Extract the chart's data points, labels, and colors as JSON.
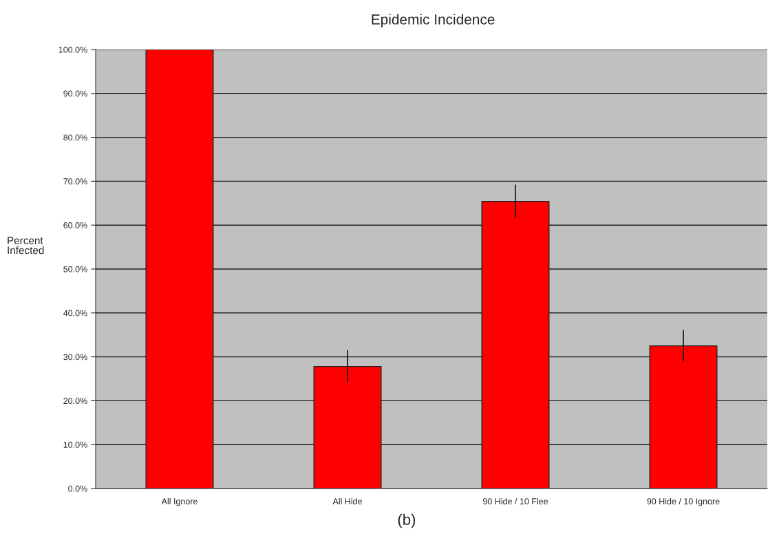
{
  "chart_data": {
    "type": "bar",
    "title": "Epidemic Incidence",
    "ylabel": "Percent\nInfected",
    "categories": [
      "All Ignore",
      "All Hide",
      "90 Hide / 10 Flee",
      "90 Hide / 10 Ignore"
    ],
    "values": [
      100.0,
      27.8,
      65.4,
      32.5
    ],
    "errors": [
      null,
      3.7,
      3.8,
      3.6
    ],
    "color": "#ff0000",
    "ylim": [
      0,
      100
    ],
    "yticks": [
      {
        "value": 0,
        "label": "0.0%"
      },
      {
        "value": 10,
        "label": "10.0%"
      },
      {
        "value": 20,
        "label": "20.0%"
      },
      {
        "value": 30,
        "label": "30.0%"
      },
      {
        "value": 40,
        "label": "40.0%"
      },
      {
        "value": 50,
        "label": "50.0%"
      },
      {
        "value": 60,
        "label": "60.0%"
      },
      {
        "value": 70,
        "label": "70.0%"
      },
      {
        "value": 80,
        "label": "80.0%"
      },
      {
        "value": 90,
        "label": "90.0%"
      },
      {
        "value": 100,
        "label": "100.0%"
      }
    ],
    "grid": "y",
    "annotations": [
      "(b)"
    ]
  }
}
